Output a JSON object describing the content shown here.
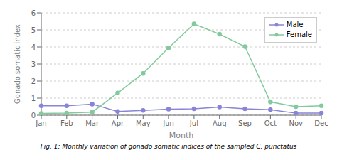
{
  "chart_data": {
    "type": "line",
    "categories": [
      "Jan",
      "Feb",
      "Mar",
      "Apr",
      "May",
      "Jun",
      "Jul",
      "Aug",
      "Sep",
      "Oct",
      "Nov",
      "Dec"
    ],
    "series": [
      {
        "name": "Male",
        "color": "#8884d8",
        "marker": "circle",
        "values": [
          0.55,
          0.55,
          0.65,
          0.22,
          0.28,
          0.35,
          0.38,
          0.48,
          0.38,
          0.32,
          0.12,
          0.12
        ]
      },
      {
        "name": "Female",
        "color": "#82ca9d",
        "marker": "circle",
        "values": [
          0.1,
          0.12,
          0.18,
          1.3,
          2.45,
          3.95,
          5.35,
          4.75,
          4.02,
          0.78,
          0.5,
          0.55
        ]
      }
    ],
    "xlabel": "Month",
    "ylabel": "Gonado somatic index",
    "ylim": [
      0,
      6
    ],
    "yticks": [
      0,
      1,
      2,
      3,
      4,
      5,
      6
    ],
    "grid": "y",
    "legend": "upper right",
    "annotations": [
      "Fig. 1: Monthly variation of gonado somatic indices of the sampled C. punctatus"
    ]
  }
}
